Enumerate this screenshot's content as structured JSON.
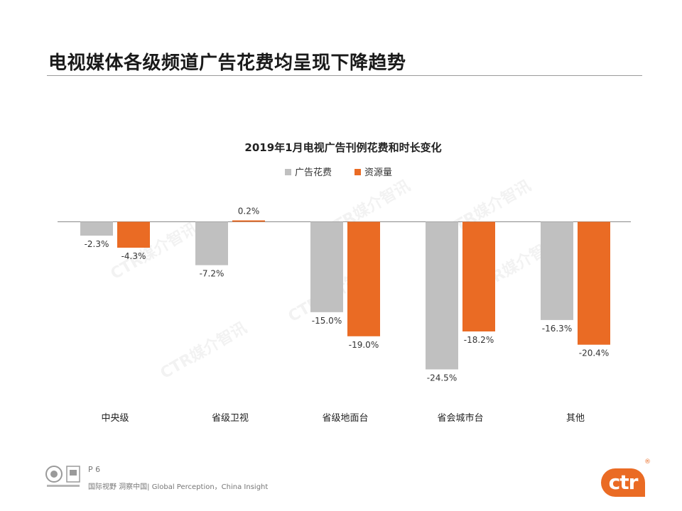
{
  "slide": {
    "title": "电视媒体各级频道广告花费均呈现下降趋势",
    "page": "P 6",
    "slogan": "国际视野 洞察中国| Global Perception，China Insight",
    "logo": "ctr",
    "logo_mark": "®",
    "watermark": "CTR媒介智讯"
  },
  "colors": {
    "series1": "#c0c0c0",
    "series2": "#ea6b24",
    "accent": "#ea6b24"
  },
  "chart_data": {
    "type": "bar",
    "title": "2019年1月电视广告刊例花费和时长变化",
    "categories": [
      "中央级",
      "省级卫视",
      "省级地面台",
      "省会城市台",
      "其他"
    ],
    "series": [
      {
        "name": "广告花费",
        "values": [
          -2.3,
          -7.2,
          -15.0,
          -24.5,
          -16.3
        ],
        "labels": [
          "-2.3%",
          "-7.2%",
          "-15.0%",
          "-24.5%",
          "-16.3%"
        ]
      },
      {
        "name": "资源量",
        "values": [
          -4.3,
          0.2,
          -19.0,
          -18.2,
          -20.4
        ],
        "labels": [
          "-4.3%",
          "0.2%",
          "-19.0%",
          "-18.2%",
          "-20.4%"
        ]
      }
    ],
    "unit": "%",
    "ylim": [
      -25,
      0.5
    ],
    "legend": "top",
    "grid": false
  }
}
